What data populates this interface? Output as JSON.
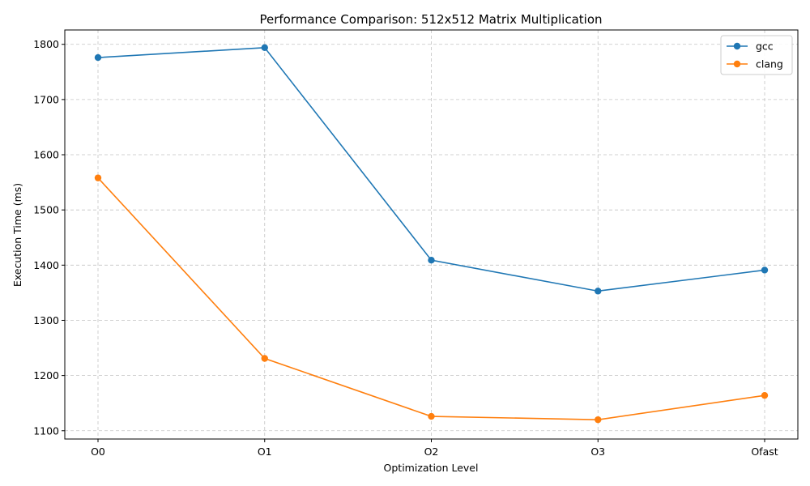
{
  "chart_data": {
    "type": "line",
    "title": "Performance Comparison: 512x512 Matrix Multiplication",
    "xlabel": "Optimization Level",
    "ylabel": "Execution Time (ms)",
    "categories": [
      "O0",
      "O1",
      "O2",
      "O3",
      "Ofast"
    ],
    "yticks": [
      1100,
      1200,
      1300,
      1400,
      1500,
      1600,
      1700,
      1800
    ],
    "ylim": [
      1085,
      1826
    ],
    "grid": true,
    "legend_position": "top-right",
    "series": [
      {
        "name": "gcc",
        "color": "#1f77b4",
        "values": [
          1776,
          1794,
          1409,
          1353,
          1391
        ]
      },
      {
        "name": "clang",
        "color": "#ff7f0e",
        "values": [
          1558,
          1231,
          1126,
          1120,
          1164
        ]
      }
    ]
  }
}
